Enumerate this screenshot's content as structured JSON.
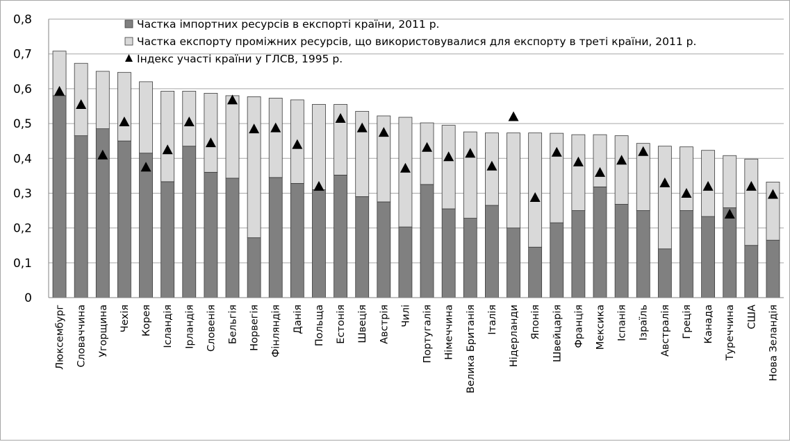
{
  "chart_data": {
    "type": "bar",
    "stacked": true,
    "categories": [
      "Люксембург",
      "Словаччина",
      "Угорщина",
      "Чехія",
      "Корея",
      "Ісландія",
      "Ірландія",
      "Словенія",
      "Бельгія",
      "Норвегія",
      "Фінляндія",
      "Данія",
      "Польща",
      "Естонія",
      "Швеція",
      "Австрія",
      "Чилі",
      "Португалія",
      "Німеччина",
      "Велика Британія",
      "Італія",
      "Нідерланди",
      "Японія",
      "Швейцарія",
      "Франція",
      "Мексика",
      "Іспанія",
      "Ізраїль",
      "Австралія",
      "Греція",
      "Канада",
      "Туреччина",
      "США",
      "Нова Зеландія"
    ],
    "series": [
      {
        "name": "Частка імпортних ресурсів в експорті країни, 2011 р.",
        "kind": "bar",
        "color": "#808080",
        "values": [
          0.58,
          0.465,
          0.485,
          0.45,
          0.415,
          0.333,
          0.435,
          0.36,
          0.343,
          0.172,
          0.345,
          0.328,
          0.31,
          0.352,
          0.29,
          0.275,
          0.203,
          0.325,
          0.255,
          0.228,
          0.265,
          0.2,
          0.145,
          0.215,
          0.25,
          0.318,
          0.268,
          0.25,
          0.14,
          0.25,
          0.233,
          0.258,
          0.15,
          0.165
        ]
      },
      {
        "name": "Частка експорту проміжних ресурсів, що використовувалися для експорту в треті країни, 2011 р.",
        "kind": "bar",
        "color": "#d9d9d9",
        "values": [
          0.128,
          0.208,
          0.165,
          0.197,
          0.205,
          0.26,
          0.158,
          0.227,
          0.237,
          0.405,
          0.228,
          0.24,
          0.245,
          0.203,
          0.245,
          0.247,
          0.315,
          0.177,
          0.24,
          0.248,
          0.208,
          0.273,
          0.328,
          0.257,
          0.218,
          0.15,
          0.197,
          0.193,
          0.295,
          0.183,
          0.19,
          0.15,
          0.248,
          0.167
        ]
      },
      {
        "name": "Індекс участі країни у ГЛСВ, 1995 р.",
        "kind": "marker",
        "marker": "triangle",
        "color": "#000000",
        "values": [
          0.593,
          0.555,
          0.41,
          0.505,
          0.375,
          0.425,
          0.505,
          0.445,
          0.568,
          0.485,
          0.488,
          0.44,
          0.32,
          0.515,
          0.488,
          0.475,
          0.372,
          0.432,
          0.405,
          0.415,
          0.378,
          0.52,
          0.288,
          0.418,
          0.39,
          0.36,
          0.395,
          0.42,
          0.33,
          0.3,
          0.32,
          0.24,
          0.32,
          0.297
        ]
      }
    ],
    "ylim": [
      0,
      0.8
    ],
    "yticks": [
      "0",
      "0,1",
      "0,2",
      "0,3",
      "0,4",
      "0,5",
      "0,6",
      "0,7",
      "0,8"
    ],
    "grid": true,
    "legend": "top-center",
    "title": "",
    "xlabel": "",
    "ylabel": ""
  }
}
